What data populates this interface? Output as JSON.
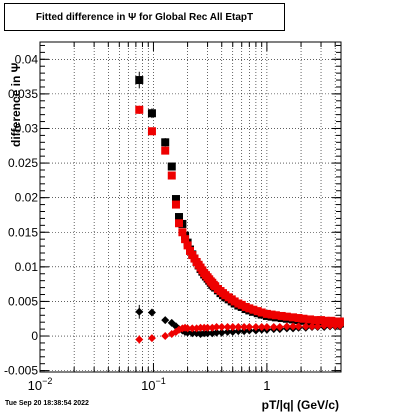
{
  "title": "Fitted difference in  Ψ  for Global Rec All EtapT",
  "timestamp": "Tue Sep 20 18:38:54 2022",
  "chart_data": {
    "type": "scatter",
    "title": "Fitted difference in  Ψ  for Global Rec All EtapT",
    "xlabel": "pT/|q| (GeV/c)",
    "ylabel": "difference in Ψ",
    "xscale": "log",
    "xlim": [
      0.01,
      4.5
    ],
    "ylim": [
      -0.0052,
      0.0425
    ],
    "grid": true,
    "xticklabels": [
      "10^-2",
      "10^-1",
      "1"
    ],
    "yticks": [
      -0.005,
      0,
      0.005,
      0.01,
      0.015,
      0.02,
      0.025,
      0.03,
      0.035,
      0.04
    ],
    "yticklabels": [
      "-0.005",
      "0",
      "0.005",
      "0.01",
      "0.015",
      "0.02",
      "0.025",
      "0.03",
      "0.035",
      "0.04"
    ],
    "series": [
      {
        "role": "width",
        "color": "#000000",
        "marker": "square",
        "x": [
          0.075,
          0.097,
          0.127,
          0.145,
          0.158,
          0.168,
          0.18,
          0.19,
          0.2,
          0.21,
          0.22,
          0.23,
          0.24,
          0.25,
          0.26,
          0.27,
          0.28,
          0.29,
          0.3,
          0.31,
          0.32,
          0.33,
          0.34,
          0.35,
          0.37,
          0.39,
          0.41,
          0.43,
          0.46,
          0.49,
          0.52,
          0.56,
          0.6,
          0.65,
          0.7,
          0.76,
          0.83,
          0.9,
          1.0,
          1.1,
          1.2,
          1.35,
          1.5,
          1.7,
          1.9,
          2.1,
          2.4,
          2.7,
          3.0,
          3.3,
          3.7,
          4.1,
          4.4
        ],
        "y": [
          0.037,
          0.0322,
          0.028,
          0.0245,
          0.0198,
          0.0172,
          0.0162,
          0.0145,
          0.0135,
          0.0125,
          0.0118,
          0.0112,
          0.0107,
          0.0102,
          0.0097,
          0.0093,
          0.0089,
          0.0086,
          0.0083,
          0.008,
          0.0077,
          0.0074,
          0.0072,
          0.007,
          0.0066,
          0.0062,
          0.0059,
          0.0056,
          0.0053,
          0.005,
          0.0047,
          0.0044,
          0.0042,
          0.0039,
          0.0037,
          0.0035,
          0.0033,
          0.0031,
          0.0029,
          0.0028,
          0.0027,
          0.0026,
          0.0025,
          0.0024,
          0.0023,
          0.0022,
          0.0021,
          0.002,
          0.002,
          0.0019,
          0.0019,
          0.0018,
          0.0018
        ],
        "yerr": [
          0.0012,
          0.0007,
          0.0006,
          0.0005,
          0.0004,
          0.0003,
          0.0003,
          0.0002,
          0.0002,
          0.0002,
          0.0002,
          0.0002,
          0.0002,
          0.0002,
          0.0001,
          0.0001,
          0.0001,
          0.0001,
          0.0001,
          0.0001,
          0.0001,
          0.0001,
          0.0001,
          0.0001,
          0.0001,
          0.0001,
          0.0001,
          0.0001,
          0.0001,
          0.0001,
          0.0001,
          0.0001,
          0.0001,
          0.0001,
          0.0001,
          0.0001,
          0.0001,
          0.0001,
          0.0001,
          0.0001,
          0.0001,
          0.0001,
          0.0001,
          0.0001,
          0.0001,
          0.0001,
          0.0001,
          0.0001,
          0.0001,
          0.0001,
          0.0001,
          0.0001,
          0.0001
        ]
      },
      {
        "role": "width",
        "color": "#ee0000",
        "marker": "square",
        "x": [
          0.075,
          0.097,
          0.127,
          0.145,
          0.158,
          0.168,
          0.18,
          0.19,
          0.2,
          0.21,
          0.22,
          0.23,
          0.24,
          0.25,
          0.26,
          0.27,
          0.28,
          0.29,
          0.3,
          0.31,
          0.32,
          0.33,
          0.34,
          0.35,
          0.37,
          0.39,
          0.41,
          0.43,
          0.46,
          0.49,
          0.52,
          0.56,
          0.6,
          0.65,
          0.7,
          0.76,
          0.83,
          0.9,
          1.0,
          1.1,
          1.2,
          1.35,
          1.5,
          1.7,
          1.9,
          2.1,
          2.4,
          2.7,
          3.0,
          3.3,
          3.7,
          4.1,
          4.4
        ],
        "y": [
          0.0327,
          0.0296,
          0.0268,
          0.0232,
          0.019,
          0.0163,
          0.015,
          0.014,
          0.0131,
          0.0123,
          0.0117,
          0.0112,
          0.0107,
          0.0103,
          0.0099,
          0.0095,
          0.0091,
          0.0088,
          0.0085,
          0.0082,
          0.0079,
          0.0077,
          0.0074,
          0.0072,
          0.0068,
          0.0065,
          0.0062,
          0.0059,
          0.0056,
          0.0053,
          0.005,
          0.0047,
          0.0045,
          0.0042,
          0.004,
          0.0038,
          0.0036,
          0.0034,
          0.0032,
          0.0031,
          0.003,
          0.0029,
          0.0028,
          0.0027,
          0.0026,
          0.0025,
          0.0024,
          0.0023,
          0.0023,
          0.0022,
          0.0022,
          0.0021,
          0.0021
        ],
        "yerr": [
          0.0006,
          0.0005,
          0.0004,
          0.0004,
          0.0003,
          0.0003,
          0.0003,
          0.0002,
          0.0002,
          0.0002,
          0.0002,
          0.0002,
          0.0002,
          0.0001,
          0.0001,
          0.0001,
          0.0001,
          0.0001,
          0.0001,
          0.0001,
          0.0001,
          0.0001,
          0.0001,
          0.0001,
          0.0001,
          0.0001,
          0.0001,
          0.0001,
          0.0001,
          0.0001,
          0.0001,
          0.0001,
          0.0001,
          0.0001,
          0.0001,
          0.0001,
          0.0001,
          0.0001,
          0.0001,
          0.0001,
          0.0001,
          0.0001,
          0.0001,
          0.0001,
          0.0001,
          0.0001,
          0.0001,
          0.0001,
          0.0001,
          0.0001,
          0.0001,
          0.0001,
          0.0001
        ]
      },
      {
        "role": "mean",
        "color": "#000000",
        "marker": "diamond",
        "x": [
          0.075,
          0.097,
          0.127,
          0.145,
          0.158,
          0.168,
          0.18,
          0.19,
          0.2,
          0.22,
          0.24,
          0.26,
          0.28,
          0.3,
          0.33,
          0.36,
          0.4,
          0.45,
          0.5,
          0.56,
          0.63,
          0.7,
          0.8,
          0.9,
          1.0,
          1.15,
          1.3,
          1.5,
          1.7,
          1.9,
          2.2,
          2.5,
          2.8,
          3.2,
          3.6,
          4.0,
          4.4
        ],
        "y": [
          0.0035,
          0.0034,
          0.0023,
          0.0019,
          0.0014,
          0.001,
          0.0008,
          0.0006,
          0.0005,
          0.0004,
          0.0004,
          0.0003,
          0.0004,
          0.0004,
          0.0004,
          0.0005,
          0.0005,
          0.0006,
          0.0006,
          0.0007,
          0.0007,
          0.0008,
          0.0008,
          0.0009,
          0.0009,
          0.001,
          0.001,
          0.0011,
          0.0011,
          0.0012,
          0.0012,
          0.0013,
          0.0013,
          0.0013,
          0.0014,
          0.0014,
          0.0014
        ],
        "yerr": [
          0.001,
          0.0005,
          0.0004,
          0.0004,
          0.0003,
          0.0003,
          0.0002,
          0.0002,
          0.0002,
          0.0002,
          0.0001,
          0.0001,
          0.0001,
          0.0001,
          0.0001,
          0.0001,
          0.0001,
          0.0001,
          0.0001,
          0.0001,
          0.0001,
          0.0001,
          0.0001,
          0.0001,
          0.0001,
          0.0001,
          0.0001,
          0.0001,
          0.0001,
          0.0001,
          0.0001,
          0.0001,
          0.0001,
          0.0001,
          0.0001,
          0.0001,
          0.0001
        ]
      },
      {
        "role": "mean",
        "color": "#ee0000",
        "marker": "diamond",
        "x": [
          0.075,
          0.097,
          0.127,
          0.145,
          0.158,
          0.168,
          0.18,
          0.19,
          0.2,
          0.22,
          0.24,
          0.26,
          0.28,
          0.3,
          0.33,
          0.36,
          0.4,
          0.45,
          0.5,
          0.56,
          0.63,
          0.7,
          0.8,
          0.9,
          1.0,
          1.15,
          1.3,
          1.5,
          1.7,
          1.9,
          2.2,
          2.5,
          2.8,
          3.2,
          3.6,
          4.0,
          4.4
        ],
        "y": [
          -0.0005,
          -0.0003,
          0.0,
          0.0003,
          0.0006,
          0.0009,
          0.0011,
          0.0012,
          0.0011,
          0.0011,
          0.0011,
          0.0012,
          0.0012,
          0.0012,
          0.0012,
          0.0013,
          0.0013,
          0.0013,
          0.0013,
          0.0013,
          0.0013,
          0.0013,
          0.0013,
          0.0013,
          0.0013,
          0.0013,
          0.0013,
          0.0014,
          0.0014,
          0.0014,
          0.0014,
          0.0014,
          0.0014,
          0.0015,
          0.0015,
          0.0015,
          0.0015
        ],
        "yerr": [
          0.0006,
          0.0004,
          0.0003,
          0.0003,
          0.0003,
          0.0002,
          0.0002,
          0.0002,
          0.0002,
          0.0002,
          0.0001,
          0.0001,
          0.0001,
          0.0001,
          0.0001,
          0.0001,
          0.0001,
          0.0001,
          0.0001,
          0.0001,
          0.0001,
          0.0001,
          0.0001,
          0.0001,
          0.0001,
          0.0001,
          0.0001,
          0.0001,
          0.0001,
          0.0001,
          0.0001,
          0.0001,
          0.0001,
          0.0001,
          0.0001,
          0.0001,
          0.0001
        ]
      }
    ]
  }
}
